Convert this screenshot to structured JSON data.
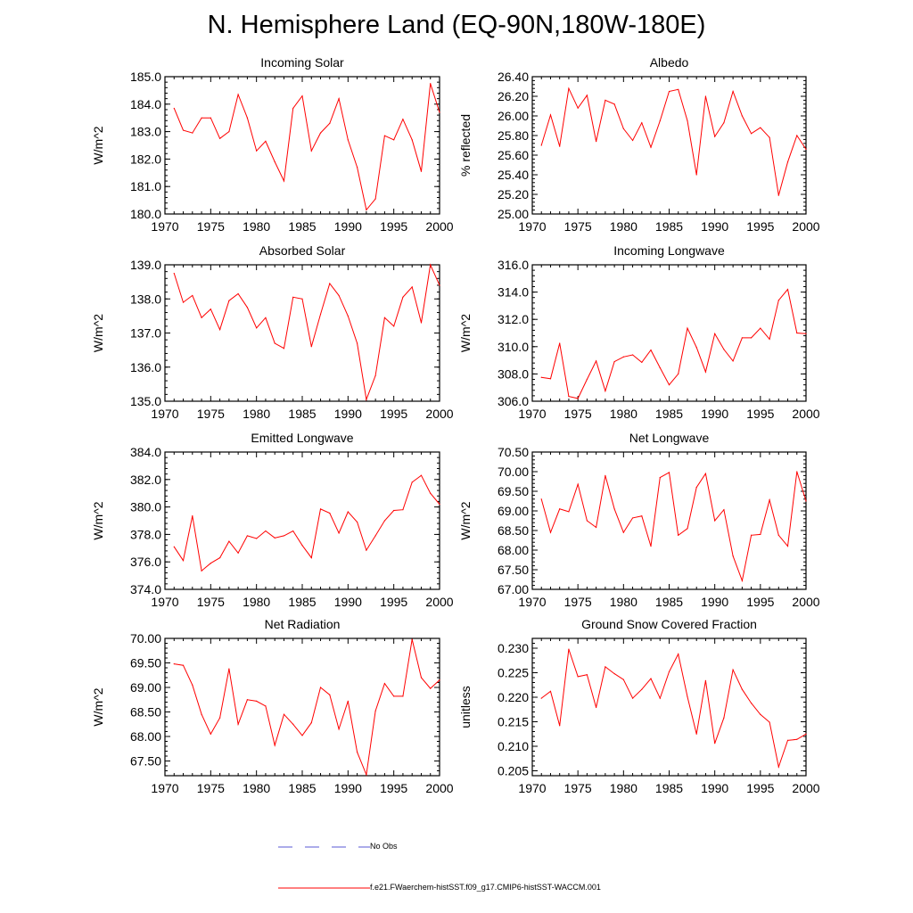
{
  "title": "N. Hemisphere Land (EQ-90N,180W-180E)",
  "legend": {
    "obs_label": "No Obs",
    "model_label": "f.e21.FWaerchem-histSST.f09_g17.CMIP6-histSST-WACCM.001"
  },
  "colors": {
    "model": "#ff0000",
    "obs": "#5a5ad6",
    "frame": "#000000"
  },
  "chart_data": [
    {
      "type": "line",
      "title": "Incoming Solar",
      "ylabel": "W/m^2",
      "xlim": [
        1970,
        2000
      ],
      "ylim": [
        180.0,
        185.0
      ],
      "xticks": [
        "1970",
        "1975",
        "1980",
        "1985",
        "1990",
        "1995",
        "2000"
      ],
      "yticks": [
        "180.0",
        "181.0",
        "182.0",
        "183.0",
        "184.0",
        "185.0"
      ],
      "x": [
        1971,
        1972,
        1973,
        1974,
        1975,
        1976,
        1977,
        1978,
        1979,
        1980,
        1981,
        1982,
        1983,
        1984,
        1985,
        1986,
        1987,
        1988,
        1989,
        1990,
        1991,
        1992,
        1993,
        1994,
        1995,
        1996,
        1997,
        1998,
        1999,
        2000
      ],
      "series": [
        {
          "values": [
            183.85,
            183.05,
            182.95,
            183.5,
            183.5,
            182.75,
            183.0,
            184.35,
            183.5,
            182.3,
            182.65,
            181.9,
            181.2,
            183.85,
            184.3,
            182.3,
            182.95,
            183.3,
            184.2,
            182.7,
            181.7,
            180.15,
            180.55,
            182.85,
            182.7,
            183.45,
            182.7,
            181.55,
            184.75,
            183.7
          ]
        }
      ]
    },
    {
      "type": "line",
      "title": "Albedo",
      "ylabel": "% reflected",
      "xlim": [
        1970,
        2000
      ],
      "ylim": [
        25.0,
        26.4
      ],
      "xticks": [
        "1970",
        "1975",
        "1980",
        "1985",
        "1990",
        "1995",
        "2000"
      ],
      "yticks": [
        "25.00",
        "25.20",
        "25.40",
        "25.60",
        "25.80",
        "26.00",
        "26.20",
        "26.40"
      ],
      "x": [
        1971,
        1972,
        1973,
        1974,
        1975,
        1976,
        1977,
        1978,
        1979,
        1980,
        1981,
        1982,
        1983,
        1984,
        1985,
        1986,
        1987,
        1988,
        1989,
        1990,
        1991,
        1992,
        1993,
        1994,
        1995,
        1996,
        1997,
        1998,
        1999,
        2000
      ],
      "series": [
        {
          "values": [
            25.7,
            26.01,
            25.69,
            26.28,
            26.08,
            26.21,
            25.74,
            26.16,
            26.12,
            25.87,
            25.75,
            25.93,
            25.68,
            25.95,
            26.25,
            26.27,
            25.95,
            25.4,
            26.2,
            25.79,
            25.93,
            26.25,
            26.0,
            25.82,
            25.88,
            25.78,
            25.19,
            25.53,
            25.8,
            25.66
          ]
        }
      ]
    },
    {
      "type": "line",
      "title": "Absorbed Solar",
      "ylabel": "W/m^2",
      "xlim": [
        1970,
        2000
      ],
      "ylim": [
        135.0,
        139.0
      ],
      "xticks": [
        "1970",
        "1975",
        "1980",
        "1985",
        "1990",
        "1995",
        "2000"
      ],
      "yticks": [
        "135.0",
        "136.0",
        "137.0",
        "138.0",
        "139.0"
      ],
      "x": [
        1971,
        1972,
        1973,
        1974,
        1975,
        1976,
        1977,
        1978,
        1979,
        1980,
        1981,
        1982,
        1983,
        1984,
        1985,
        1986,
        1987,
        1988,
        1989,
        1990,
        1991,
        1992,
        1993,
        1994,
        1995,
        1996,
        1997,
        1998,
        1999,
        2000
      ],
      "series": [
        {
          "values": [
            138.75,
            137.9,
            138.1,
            137.45,
            137.7,
            137.1,
            137.95,
            138.15,
            137.75,
            137.15,
            137.45,
            136.7,
            136.55,
            138.05,
            138.0,
            136.6,
            137.55,
            138.45,
            138.1,
            137.5,
            136.7,
            135.05,
            135.75,
            137.45,
            137.2,
            138.05,
            138.35,
            137.3,
            139.0,
            138.4
          ]
        }
      ]
    },
    {
      "type": "line",
      "title": "Incoming Longwave",
      "ylabel": "W/m^2",
      "xlim": [
        1970,
        2000
      ],
      "ylim": [
        306.0,
        316.0
      ],
      "xticks": [
        "1970",
        "1975",
        "1980",
        "1985",
        "1990",
        "1995",
        "2000"
      ],
      "yticks": [
        "306.0",
        "308.0",
        "310.0",
        "312.0",
        "314.0",
        "316.0"
      ],
      "x": [
        1971,
        1972,
        1973,
        1974,
        1975,
        1976,
        1977,
        1978,
        1979,
        1980,
        1981,
        1982,
        1983,
        1984,
        1985,
        1986,
        1987,
        1988,
        1989,
        1990,
        1991,
        1992,
        1993,
        1994,
        1995,
        1996,
        1997,
        1998,
        1999,
        2000
      ],
      "series": [
        {
          "values": [
            307.75,
            307.65,
            310.25,
            306.35,
            306.2,
            307.6,
            308.95,
            306.75,
            308.9,
            309.25,
            309.4,
            308.85,
            309.75,
            308.45,
            307.2,
            308.0,
            311.35,
            309.95,
            308.15,
            310.95,
            309.8,
            308.95,
            310.65,
            310.65,
            311.35,
            310.55,
            313.4,
            314.2,
            311.0,
            310.95
          ]
        }
      ]
    },
    {
      "type": "line",
      "title": "Emitted Longwave",
      "ylabel": "W/m^2",
      "xlim": [
        1970,
        2000
      ],
      "ylim": [
        374.0,
        384.0
      ],
      "xticks": [
        "1970",
        "1975",
        "1980",
        "1985",
        "1990",
        "1995",
        "2000"
      ],
      "yticks": [
        "374.0",
        "376.0",
        "378.0",
        "380.0",
        "382.0",
        "384.0"
      ],
      "x": [
        1971,
        1972,
        1973,
        1974,
        1975,
        1976,
        1977,
        1978,
        1979,
        1980,
        1981,
        1982,
        1983,
        1984,
        1985,
        1986,
        1987,
        1988,
        1989,
        1990,
        1991,
        1992,
        1993,
        1994,
        1995,
        1996,
        1997,
        1998,
        1999,
        2000
      ],
      "series": [
        {
          "values": [
            377.1,
            376.1,
            379.35,
            375.35,
            375.9,
            376.3,
            377.5,
            376.65,
            377.9,
            377.7,
            378.25,
            377.75,
            377.9,
            378.25,
            377.2,
            376.3,
            379.85,
            379.55,
            378.1,
            379.65,
            378.9,
            376.85,
            377.9,
            379.0,
            379.75,
            379.8,
            381.8,
            382.3,
            381.0,
            380.2
          ]
        }
      ]
    },
    {
      "type": "line",
      "title": "Net Longwave",
      "ylabel": "W/m^2",
      "xlim": [
        1970,
        2000
      ],
      "ylim": [
        67.0,
        70.5
      ],
      "xticks": [
        "1970",
        "1975",
        "1980",
        "1985",
        "1990",
        "1995",
        "2000"
      ],
      "yticks": [
        "67.00",
        "67.50",
        "68.00",
        "68.50",
        "69.00",
        "69.50",
        "70.00",
        "70.50"
      ],
      "x": [
        1971,
        1972,
        1973,
        1974,
        1975,
        1976,
        1977,
        1978,
        1979,
        1980,
        1981,
        1982,
        1983,
        1984,
        1985,
        1986,
        1987,
        1988,
        1989,
        1990,
        1991,
        1992,
        1993,
        1994,
        1995,
        1996,
        1997,
        1998,
        1999,
        2000
      ],
      "series": [
        {
          "values": [
            69.3,
            68.45,
            69.05,
            68.98,
            69.68,
            68.75,
            68.58,
            69.9,
            69.05,
            68.45,
            68.82,
            68.87,
            68.1,
            69.85,
            69.98,
            68.38,
            68.55,
            69.6,
            69.95,
            68.75,
            69.03,
            67.85,
            67.22,
            68.38,
            68.4,
            69.28,
            68.38,
            68.1,
            70.0,
            69.25
          ]
        }
      ]
    },
    {
      "type": "line",
      "title": "Net Radiation",
      "ylabel": "W/m^2",
      "xlim": [
        1970,
        2000
      ],
      "ylim": [
        67.2,
        70.0
      ],
      "xticks": [
        "1970",
        "1975",
        "1980",
        "1985",
        "1990",
        "1995",
        "2000"
      ],
      "yticks": [
        "67.50",
        "68.00",
        "68.50",
        "69.00",
        "69.50",
        "70.00"
      ],
      "x": [
        1971,
        1972,
        1973,
        1974,
        1975,
        1976,
        1977,
        1978,
        1979,
        1980,
        1981,
        1982,
        1983,
        1984,
        1985,
        1986,
        1987,
        1988,
        1989,
        1990,
        1991,
        1992,
        1993,
        1994,
        1995,
        1996,
        1997,
        1998,
        1999,
        2000
      ],
      "series": [
        {
          "values": [
            69.48,
            69.45,
            69.05,
            68.45,
            68.05,
            68.38,
            69.38,
            68.25,
            68.75,
            68.72,
            68.62,
            67.82,
            68.45,
            68.25,
            68.02,
            68.28,
            69.0,
            68.85,
            68.15,
            68.72,
            67.68,
            67.22,
            68.52,
            69.08,
            68.82,
            68.82,
            69.98,
            69.2,
            68.98,
            69.15
          ]
        }
      ]
    },
    {
      "type": "line",
      "title": "Ground Snow Covered Fraction",
      "ylabel": "unitless",
      "xlim": [
        1970,
        2000
      ],
      "ylim": [
        0.204,
        0.232
      ],
      "xticks": [
        "1970",
        "1975",
        "1980",
        "1985",
        "1990",
        "1995",
        "2000"
      ],
      "yticks": [
        "0.205",
        "0.210",
        "0.215",
        "0.220",
        "0.225",
        "0.230"
      ],
      "x": [
        1971,
        1972,
        1973,
        1974,
        1975,
        1976,
        1977,
        1978,
        1979,
        1980,
        1981,
        1982,
        1983,
        1984,
        1985,
        1986,
        1987,
        1988,
        1989,
        1990,
        1991,
        1992,
        1993,
        1994,
        1995,
        1996,
        1997,
        1998,
        1999,
        2000
      ],
      "series": [
        {
          "values": [
            0.2198,
            0.2212,
            0.2142,
            0.2298,
            0.2242,
            0.2246,
            0.2179,
            0.2262,
            0.2248,
            0.2236,
            0.2198,
            0.2216,
            0.2238,
            0.2198,
            0.2252,
            0.2288,
            0.2201,
            0.2125,
            0.2234,
            0.2106,
            0.2158,
            0.2256,
            0.2216,
            0.2188,
            0.2165,
            0.2149,
            0.2058,
            0.2112,
            0.2114,
            0.2125
          ]
        }
      ]
    }
  ]
}
